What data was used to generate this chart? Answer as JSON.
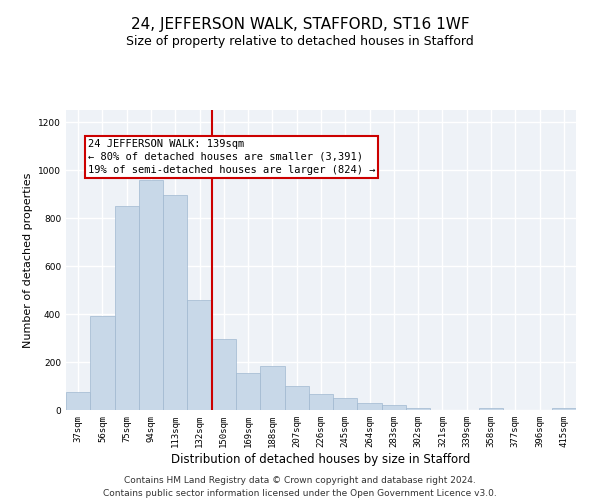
{
  "title": "24, JEFFERSON WALK, STAFFORD, ST16 1WF",
  "subtitle": "Size of property relative to detached houses in Stafford",
  "xlabel": "Distribution of detached houses by size in Stafford",
  "ylabel": "Number of detached properties",
  "categories": [
    "37sqm",
    "56sqm",
    "75sqm",
    "94sqm",
    "113sqm",
    "132sqm",
    "150sqm",
    "169sqm",
    "188sqm",
    "207sqm",
    "226sqm",
    "245sqm",
    "264sqm",
    "283sqm",
    "302sqm",
    "321sqm",
    "339sqm",
    "358sqm",
    "377sqm",
    "396sqm",
    "415sqm"
  ],
  "values": [
    75,
    390,
    850,
    960,
    895,
    460,
    295,
    155,
    185,
    100,
    65,
    50,
    30,
    20,
    10,
    0,
    0,
    10,
    0,
    0,
    10
  ],
  "bar_color": "#c8d8e8",
  "bar_edge_color": "#a0b8d0",
  "bar_width": 1.0,
  "vline_x": 5.5,
  "vline_color": "#cc0000",
  "annotation_text": "24 JEFFERSON WALK: 139sqm\n← 80% of detached houses are smaller (3,391)\n19% of semi-detached houses are larger (824) →",
  "ylim": [
    0,
    1250
  ],
  "yticks": [
    0,
    200,
    400,
    600,
    800,
    1000,
    1200
  ],
  "bg_color": "#eef2f7",
  "grid_color": "#ffffff",
  "footer_line1": "Contains HM Land Registry data © Crown copyright and database right 2024.",
  "footer_line2": "Contains public sector information licensed under the Open Government Licence v3.0.",
  "title_fontsize": 11,
  "subtitle_fontsize": 9,
  "xlabel_fontsize": 8.5,
  "ylabel_fontsize": 8,
  "tick_fontsize": 6.5,
  "annotation_fontsize": 7.5,
  "footer_fontsize": 6.5
}
